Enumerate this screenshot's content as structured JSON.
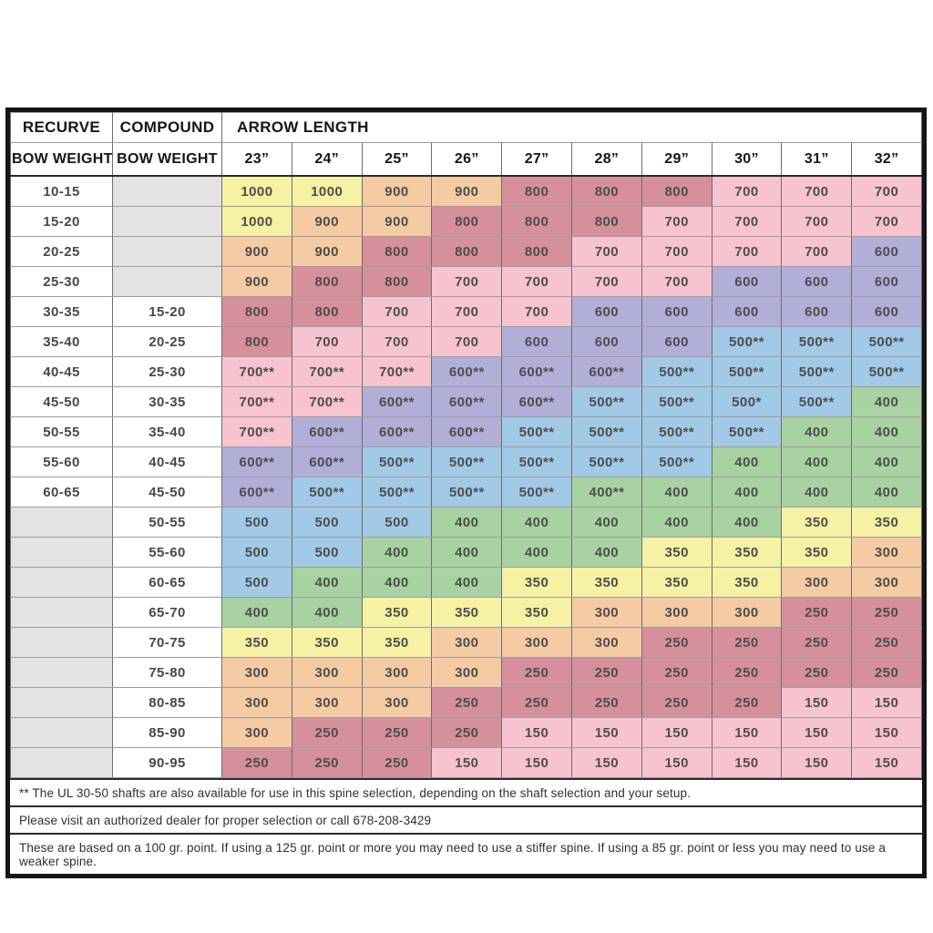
{
  "chart_data": {
    "type": "table",
    "header": {
      "recurve": "RECURVE",
      "compound": "COMPOUND",
      "bow_weight": "BOW WEIGHT",
      "arrow_length": "ARROW LENGTH",
      "arrow_lengths": [
        "23”",
        "24”",
        "25”",
        "26”",
        "27”",
        "28”",
        "29”",
        "30”",
        "31”",
        "32”"
      ]
    },
    "rows": [
      {
        "recurve": "10-15",
        "compound": "",
        "spines": [
          "1000",
          "1000",
          "900",
          "900",
          "800",
          "800",
          "800",
          "700",
          "700",
          "700"
        ]
      },
      {
        "recurve": "15-20",
        "compound": "",
        "spines": [
          "1000",
          "900",
          "900",
          "800",
          "800",
          "800",
          "700",
          "700",
          "700",
          "700"
        ]
      },
      {
        "recurve": "20-25",
        "compound": "",
        "spines": [
          "900",
          "900",
          "800",
          "800",
          "800",
          "700",
          "700",
          "700",
          "700",
          "600"
        ]
      },
      {
        "recurve": "25-30",
        "compound": "",
        "spines": [
          "900",
          "800",
          "800",
          "700",
          "700",
          "700",
          "700",
          "600",
          "600",
          "600"
        ]
      },
      {
        "recurve": "30-35",
        "compound": "15-20",
        "spines": [
          "800",
          "800",
          "700",
          "700",
          "700",
          "600",
          "600",
          "600",
          "600",
          "600"
        ]
      },
      {
        "recurve": "35-40",
        "compound": "20-25",
        "spines": [
          "800",
          "700",
          "700",
          "700",
          "600",
          "600",
          "600",
          "500**",
          "500**",
          "500**"
        ]
      },
      {
        "recurve": "40-45",
        "compound": "25-30",
        "spines": [
          "700**",
          "700**",
          "700**",
          "600**",
          "600**",
          "600**",
          "500**",
          "500**",
          "500**",
          "500**"
        ]
      },
      {
        "recurve": "45-50",
        "compound": "30-35",
        "spines": [
          "700**",
          "700**",
          "600**",
          "600**",
          "600**",
          "500**",
          "500**",
          "500*",
          "500**",
          "400"
        ]
      },
      {
        "recurve": "50-55",
        "compound": "35-40",
        "spines": [
          "700**",
          "600**",
          "600**",
          "600**",
          "500**",
          "500**",
          "500**",
          "500**",
          "400",
          "400"
        ]
      },
      {
        "recurve": "55-60",
        "compound": "40-45",
        "spines": [
          "600**",
          "600**",
          "500**",
          "500**",
          "500**",
          "500**",
          "500**",
          "400",
          "400",
          "400"
        ]
      },
      {
        "recurve": "60-65",
        "compound": "45-50",
        "spines": [
          "600**",
          "500**",
          "500**",
          "500**",
          "500**",
          "400**",
          "400",
          "400",
          "400",
          "400"
        ]
      },
      {
        "recurve": "",
        "compound": "50-55",
        "spines": [
          "500",
          "500",
          "500",
          "400",
          "400",
          "400",
          "400",
          "400",
          "350",
          "350"
        ]
      },
      {
        "recurve": "",
        "compound": "55-60",
        "spines": [
          "500",
          "500",
          "400",
          "400",
          "400",
          "400",
          "350",
          "350",
          "350",
          "300"
        ]
      },
      {
        "recurve": "",
        "compound": "60-65",
        "spines": [
          "500",
          "400",
          "400",
          "400",
          "350",
          "350",
          "350",
          "350",
          "300",
          "300"
        ]
      },
      {
        "recurve": "",
        "compound": "65-70",
        "spines": [
          "400",
          "400",
          "350",
          "350",
          "350",
          "300",
          "300",
          "300",
          "250",
          "250"
        ]
      },
      {
        "recurve": "",
        "compound": "70-75",
        "spines": [
          "350",
          "350",
          "350",
          "300",
          "300",
          "300",
          "250",
          "250",
          "250",
          "250"
        ]
      },
      {
        "recurve": "",
        "compound": "75-80",
        "spines": [
          "300",
          "300",
          "300",
          "300",
          "250",
          "250",
          "250",
          "250",
          "250",
          "250"
        ]
      },
      {
        "recurve": "",
        "compound": "80-85",
        "spines": [
          "300",
          "300",
          "300",
          "250",
          "250",
          "250",
          "250",
          "250",
          "150",
          "150"
        ]
      },
      {
        "recurve": "",
        "compound": "85-90",
        "spines": [
          "300",
          "250",
          "250",
          "250",
          "150",
          "150",
          "150",
          "150",
          "150",
          "150"
        ]
      },
      {
        "recurve": "",
        "compound": "90-95",
        "spines": [
          "250",
          "250",
          "250",
          "150",
          "150",
          "150",
          "150",
          "150",
          "150",
          "150"
        ]
      }
    ],
    "value_colors": {
      "1000": "#f7f1a3",
      "900": "#f4cba2",
      "800": "#d6909b",
      "700": "#f6c3ce",
      "600": "#b1aed8",
      "500": "#a2c9e6",
      "400": "#a8d2a1",
      "350": "#f7f1a3",
      "300": "#f4cba2",
      "250": "#d6909b",
      "150": "#f6c3ce"
    },
    "empty_cell_color": "#e3e3e3",
    "footnotes": [
      "** The UL 30-50 shafts are also available for use in this spine selection, depending on the shaft selection and your setup.",
      "Please visit an authorized dealer for proper selection or call 678-208-3429",
      "These are based on a 100 gr. point. If using a 125 gr. point or more you may need to use a stiffer spine. If using a 85 gr. point or less you may need to use a weaker spine."
    ]
  }
}
